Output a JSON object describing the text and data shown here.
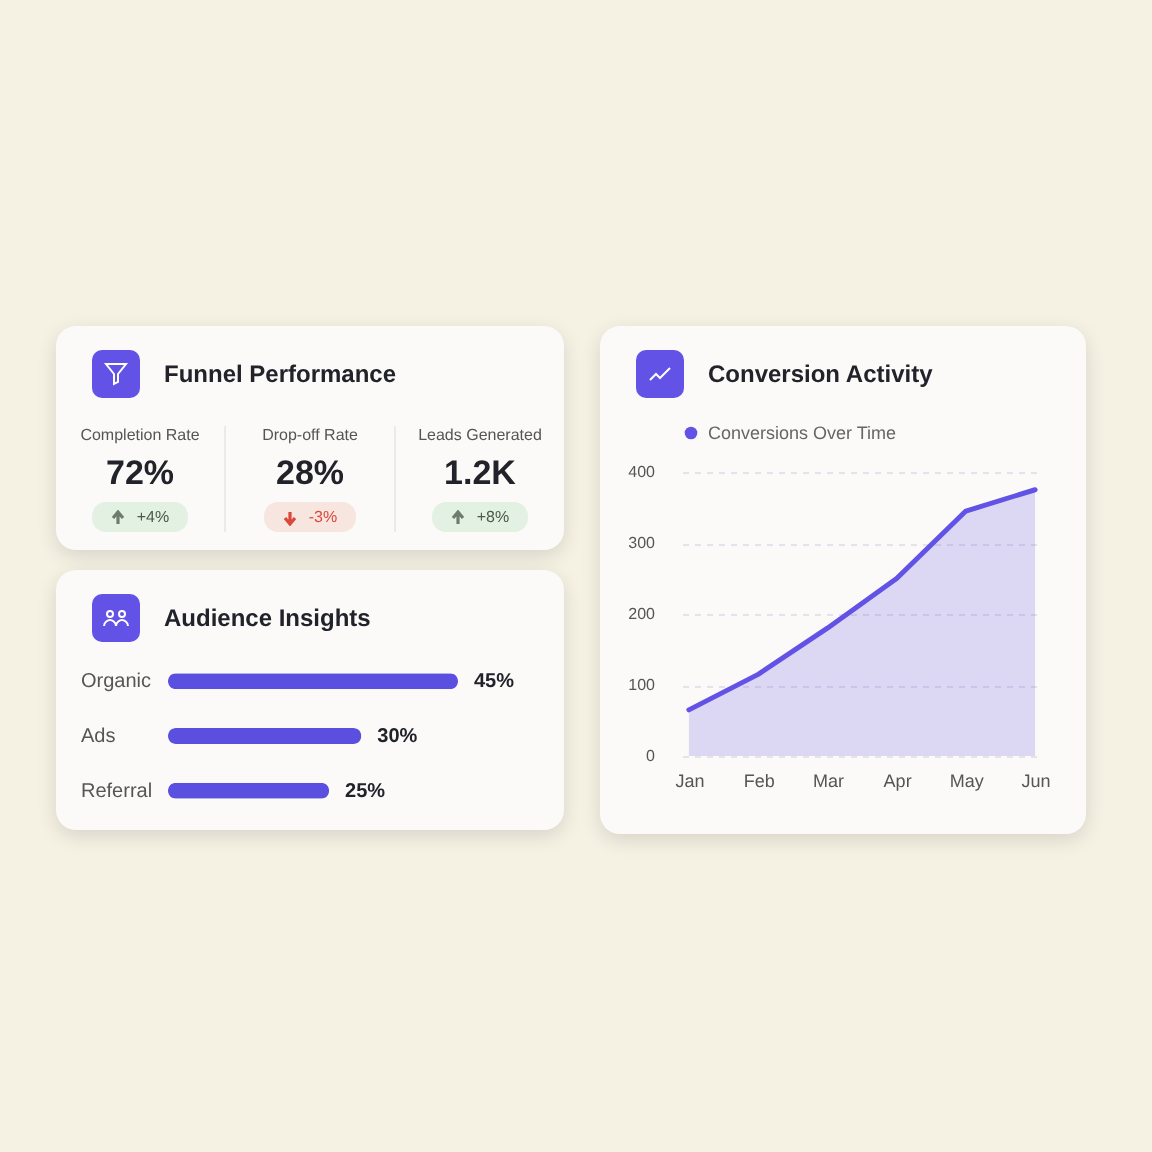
{
  "chart_data": [
    {
      "type": "other",
      "title": "Funnel Performance",
      "categories": [
        "Completion Rate",
        "Drop-off Rate",
        "Leads Generated"
      ],
      "value_labels": [
        "72%",
        "28%",
        "1.2K"
      ],
      "annotations": [
        "+4%",
        "-3%",
        "+8%"
      ]
    },
    {
      "type": "bar",
      "title": "Audience Insights",
      "orientation": "horizontal",
      "categories": [
        "Organic",
        "Ads",
        "Referral"
      ],
      "values": [
        45,
        30,
        25
      ],
      "value_labels": [
        "45%",
        "30%",
        "25%"
      ],
      "color": "#5b4fe0"
    },
    {
      "type": "area",
      "title": "Conversion Activity",
      "categories": [
        "Jan",
        "Feb",
        "Mar",
        "Apr",
        "May",
        "Jun"
      ],
      "series": [
        {
          "name": "Conversions Over Time",
          "color": "#6352e6",
          "values": [
            65,
            115,
            180,
            250,
            345,
            375
          ]
        }
      ],
      "ylim": [
        0,
        400
      ],
      "yticks": [
        0,
        100,
        200,
        300,
        400
      ],
      "grid": "y",
      "legend": "top left"
    }
  ]
}
